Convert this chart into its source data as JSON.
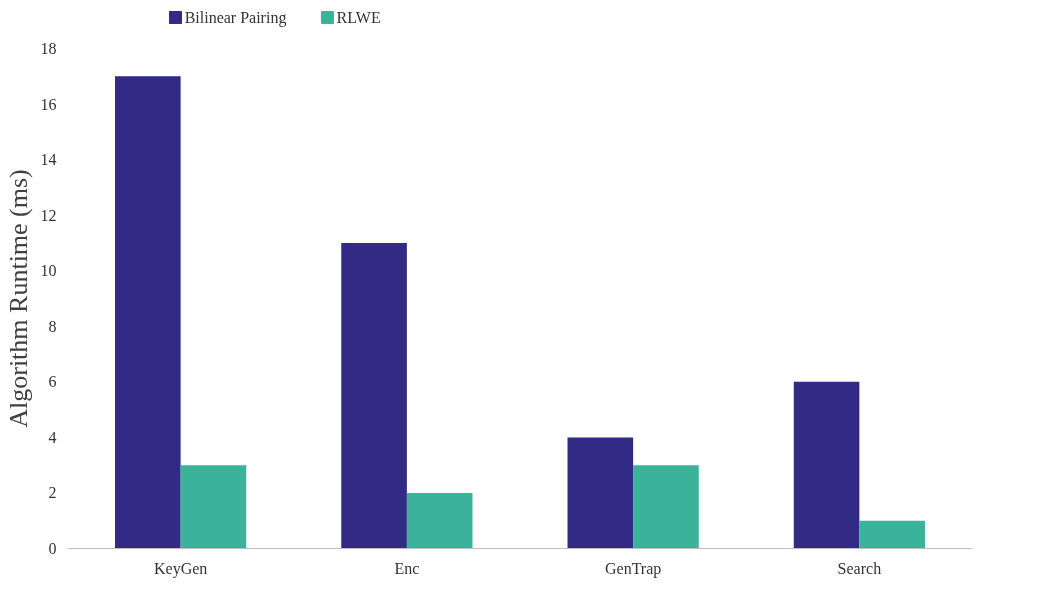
{
  "chart_data": {
    "type": "bar",
    "ylabel": "Algorithm Runtime (ms)",
    "categories": [
      "KeyGen",
      "Enc",
      "GenTrap",
      "Search"
    ],
    "series": [
      {
        "name": "Bilinear Pairing",
        "color": "#332a85",
        "values": [
          17,
          11,
          4,
          6
        ]
      },
      {
        "name": "RLWE",
        "color": "#3bb39a",
        "values": [
          3,
          2,
          3,
          1
        ]
      }
    ],
    "ylim": [
      0,
      18
    ],
    "yticks": [
      0,
      2,
      4,
      6,
      8,
      10,
      12,
      14,
      16,
      18
    ],
    "grid": false,
    "legend": "top left"
  }
}
